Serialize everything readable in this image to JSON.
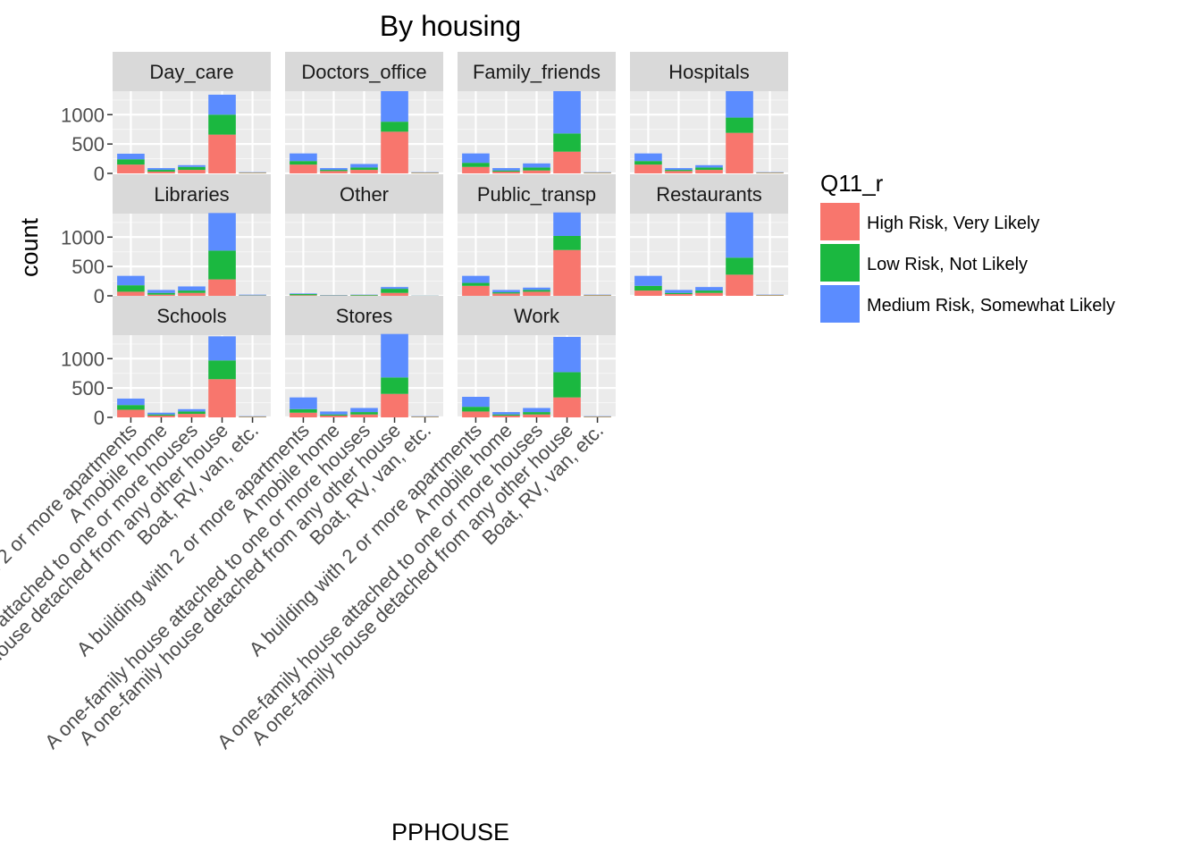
{
  "chart_data": {
    "type": "bar",
    "stacked": true,
    "title": "By housing",
    "xlabel": "PPHOUSE",
    "ylabel": "count",
    "ylim": [
      0,
      1400
    ],
    "yticks": [
      0,
      500,
      1000
    ],
    "grid": true,
    "legend_title": "Q11_r",
    "legend_position": "right",
    "categories": [
      "A building with 2 or more apartments",
      "A mobile home",
      "A one-family house attached to one or more houses",
      "A one-family house detached from any other house",
      "Boat, RV, van, etc."
    ],
    "series_meta": [
      {
        "name": "High Risk, Very Likely",
        "color": "#F8766D"
      },
      {
        "name": "Low Risk, Not Likely",
        "color": "#1BB840"
      },
      {
        "name": "Medium Risk, Somewhat Likely",
        "color": "#5B8CFF"
      }
    ],
    "facets": [
      {
        "name": "Day_care",
        "series": [
          [
            150,
            30,
            60,
            660,
            10
          ],
          [
            90,
            30,
            50,
            340,
            5
          ],
          [
            95,
            30,
            30,
            340,
            5
          ]
        ]
      },
      {
        "name": "Doctors_office",
        "series": [
          [
            150,
            40,
            60,
            710,
            10
          ],
          [
            60,
            20,
            40,
            170,
            5
          ],
          [
            130,
            30,
            60,
            520,
            5
          ]
        ]
      },
      {
        "name": "Family_friends",
        "series": [
          [
            110,
            30,
            50,
            370,
            10
          ],
          [
            70,
            20,
            50,
            310,
            5
          ],
          [
            160,
            40,
            70,
            720,
            5
          ]
        ]
      },
      {
        "name": "Hospitals",
        "series": [
          [
            150,
            40,
            60,
            690,
            10
          ],
          [
            60,
            20,
            40,
            260,
            5
          ],
          [
            130,
            30,
            40,
            450,
            5
          ]
        ]
      },
      {
        "name": "Libraries",
        "series": [
          [
            70,
            20,
            50,
            280,
            5
          ],
          [
            110,
            30,
            40,
            490,
            5
          ],
          [
            160,
            50,
            70,
            640,
            10
          ]
        ]
      },
      {
        "name": "Other",
        "series": [
          [
            10,
            5,
            5,
            50,
            2
          ],
          [
            20,
            5,
            10,
            70,
            2
          ],
          [
            10,
            5,
            5,
            30,
            2
          ]
        ]
      },
      {
        "name": "Public_transp",
        "series": [
          [
            170,
            40,
            70,
            780,
            10
          ],
          [
            50,
            20,
            30,
            240,
            5
          ],
          [
            120,
            40,
            40,
            400,
            5
          ]
        ]
      },
      {
        "name": "Restaurants",
        "series": [
          [
            90,
            30,
            50,
            360,
            10
          ],
          [
            80,
            20,
            40,
            290,
            5
          ],
          [
            170,
            50,
            60,
            770,
            5
          ]
        ]
      },
      {
        "name": "Schools",
        "series": [
          [
            130,
            30,
            60,
            650,
            10
          ],
          [
            80,
            20,
            40,
            320,
            5
          ],
          [
            110,
            30,
            40,
            410,
            5
          ]
        ]
      },
      {
        "name": "Stores",
        "series": [
          [
            80,
            30,
            50,
            400,
            10
          ],
          [
            60,
            20,
            40,
            280,
            5
          ],
          [
            200,
            50,
            70,
            740,
            5
          ]
        ]
      },
      {
        "name": "Work",
        "series": [
          [
            100,
            30,
            50,
            340,
            10
          ],
          [
            80,
            20,
            40,
            430,
            5
          ],
          [
            170,
            40,
            70,
            600,
            5
          ]
        ]
      }
    ]
  }
}
